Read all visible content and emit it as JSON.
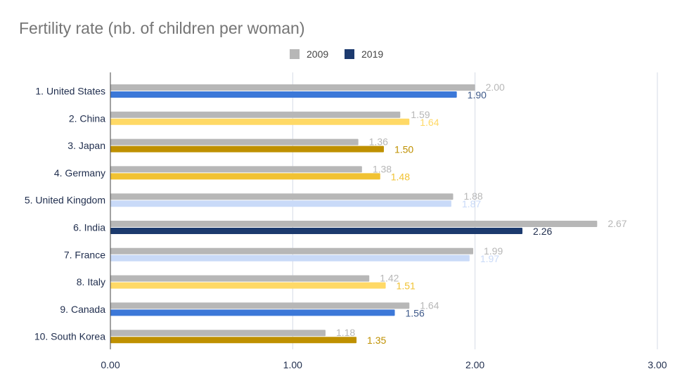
{
  "chart_data": {
    "type": "bar",
    "orientation": "horizontal",
    "title": "Fertility rate (nb. of children per woman)",
    "xlabel": "",
    "ylabel": "",
    "xlim": [
      0,
      3
    ],
    "ticks": [
      "0.00",
      "1.00",
      "2.00",
      "3.00"
    ],
    "tick_values": [
      0,
      1,
      2,
      3
    ],
    "grid": true,
    "legend_position": "top",
    "categories": [
      "1. United States",
      "2. China",
      "3. Japan",
      "4. Germany",
      "5. United Kingdom",
      "6. India",
      "7. France",
      "8. Italy",
      "9. Canada",
      "10. South Korea"
    ],
    "series": [
      {
        "name": "2009",
        "color": "#b7b7b7",
        "values": [
          2.0,
          1.59,
          1.36,
          1.38,
          1.88,
          2.67,
          1.99,
          1.42,
          1.64,
          1.18
        ],
        "labels": [
          "2.00",
          "1.59",
          "1.36",
          "1.38",
          "1.88",
          "2.67",
          "1.99",
          "1.42",
          "1.64",
          "1.18"
        ]
      },
      {
        "name": "2019",
        "color": "#1c3a6e",
        "values": [
          1.9,
          1.64,
          1.5,
          1.48,
          1.87,
          2.26,
          1.97,
          1.51,
          1.56,
          1.35
        ],
        "labels": [
          "1.90",
          "1.64",
          "1.50",
          "1.48",
          "1.87",
          "2.26",
          "1.97",
          "1.51",
          "1.56",
          "1.35"
        ],
        "bar_colors": [
          "#3c78d8",
          "#ffd966",
          "#bf9000",
          "#f1c232",
          "#c9daf8",
          "#1c3a6e",
          "#c9daf8",
          "#ffd966",
          "#3c78d8",
          "#bf9000"
        ],
        "label_colors": [
          "#3f5a8a",
          "#ffd966",
          "#bf9000",
          "#f1c232",
          "#c9daf8",
          "#1f2d4d",
          "#c9daf8",
          "#f1c232",
          "#3f5a8a",
          "#bf9000"
        ]
      }
    ]
  }
}
